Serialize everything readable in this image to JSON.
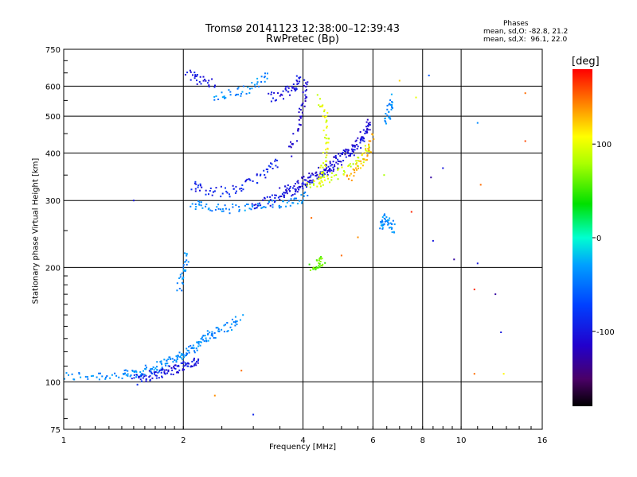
{
  "chart_data": {
    "type": "scatter",
    "title": "Tromsø 20141123 12:38:00–12:39:43",
    "subtitle": "RwPretec (Bp)",
    "xlabel": "Frequency [MHz]",
    "ylabel": "Stationary phase Virtual Height [km]",
    "x_scale": "log",
    "y_scale": "log",
    "xlim": [
      1,
      16
    ],
    "ylim": [
      75,
      750
    ],
    "x_ticks": [
      "1",
      "2",
      "4",
      "6",
      "8",
      "10",
      "16"
    ],
    "y_ticks": [
      "75",
      "100",
      "200",
      "300",
      "400",
      "500",
      "600",
      "750"
    ],
    "grid": true,
    "colorbar": {
      "label": "[deg]",
      "range": [
        -180,
        180
      ],
      "ticks": [
        "100",
        "0",
        "-100"
      ]
    },
    "phases_box": {
      "title": "Phases",
      "line_o": "mean, sd,O: -82.8, 21.2",
      "line_x": "mean, sd,X:  96.1, 22.0"
    },
    "traces": [
      {
        "f": [
          1.0,
          1.2,
          1.4,
          1.5,
          1.6,
          1.7,
          1.8,
          1.9,
          2.0,
          2.1,
          2.2,
          2.3,
          2.4,
          2.6,
          2.8
        ],
        "h": [
          103,
          104,
          104,
          105,
          107,
          109,
          112,
          115,
          118,
          122,
          127,
          131,
          135,
          140,
          147
        ],
        "phase": -40
      },
      {
        "f": [
          1.5,
          1.6,
          1.7,
          1.8,
          1.9,
          2.0,
          2.1,
          2.2
        ],
        "h": [
          101,
          103,
          105,
          106,
          108,
          110,
          112,
          113
        ],
        "phase": -100
      },
      {
        "f": [
          1.95,
          2.0,
          2.05
        ],
        "h": [
          175,
          195,
          220
        ],
        "phase": -40
      },
      {
        "f": [
          2.1,
          2.3,
          2.6,
          3.0,
          3.4,
          3.8,
          4.1
        ],
        "h": [
          295,
          287,
          285,
          287,
          292,
          300,
          310
        ],
        "phase": -40
      },
      {
        "f": [
          2.1,
          2.3,
          2.6,
          2.9,
          3.2,
          3.5
        ],
        "h": [
          330,
          320,
          315,
          330,
          355,
          380
        ],
        "phase": -90
      },
      {
        "f": [
          2.05,
          2.2,
          2.4
        ],
        "h": [
          645,
          625,
          605
        ],
        "phase": -100
      },
      {
        "f": [
          2.4,
          2.7,
          3.0,
          3.3
        ],
        "h": [
          565,
          575,
          600,
          645
        ],
        "phase": -40
      },
      {
        "f": [
          3.3,
          3.6,
          3.8,
          4.0
        ],
        "h": [
          560,
          575,
          600,
          635
        ],
        "phase": -100
      },
      {
        "f": [
          3.0,
          3.3,
          3.6,
          3.9,
          4.2,
          4.5,
          4.8,
          5.2,
          5.6,
          5.9
        ],
        "h": [
          290,
          300,
          312,
          325,
          340,
          355,
          372,
          395,
          425,
          470
        ],
        "phase": -100
      },
      {
        "f": [
          3.5,
          3.8,
          4.1,
          4.4,
          4.7,
          5.0,
          5.3,
          5.7,
          5.9
        ],
        "h": [
          315,
          325,
          340,
          355,
          370,
          390,
          415,
          450,
          480
        ],
        "phase": -110
      },
      {
        "f": [
          3.7,
          3.9,
          4.0,
          4.1
        ],
        "h": [
          400,
          470,
          540,
          620
        ],
        "phase": -110
      },
      {
        "f": [
          4.1,
          4.5,
          5.0,
          5.5,
          5.9
        ],
        "h": [
          325,
          340,
          355,
          375,
          420
        ],
        "phase": 90
      },
      {
        "f": [
          5.2,
          5.5,
          5.8,
          6.0
        ],
        "h": [
          340,
          370,
          400,
          440
        ],
        "phase": 130
      },
      {
        "f": [
          4.4,
          4.5,
          4.6,
          4.55,
          4.4
        ],
        "h": [
          330,
          370,
          420,
          500,
          560
        ],
        "phase": 100
      },
      {
        "f": [
          4.2,
          4.4,
          4.5
        ],
        "h": [
          200,
          205,
          208
        ],
        "phase": 60
      },
      {
        "f": [
          6.3,
          6.4,
          6.6,
          6.8
        ],
        "h": [
          255,
          270,
          262,
          250
        ],
        "phase": -40
      },
      {
        "f": [
          6.5,
          6.6,
          6.7
        ],
        "h": [
          480,
          520,
          560
        ],
        "phase": -40
      }
    ],
    "points": [
      {
        "f": 1.5,
        "h": 300,
        "phase": -100
      },
      {
        "f": 2.4,
        "h": 92,
        "phase": 140
      },
      {
        "f": 2.8,
        "h": 107,
        "phase": 150
      },
      {
        "f": 3.0,
        "h": 82,
        "phase": -90
      },
      {
        "f": 4.2,
        "h": 270,
        "phase": 150
      },
      {
        "f": 5.0,
        "h": 215,
        "phase": 150
      },
      {
        "f": 5.5,
        "h": 240,
        "phase": 140
      },
      {
        "f": 6.4,
        "h": 350,
        "phase": 80
      },
      {
        "f": 7.0,
        "h": 620,
        "phase": 120
      },
      {
        "f": 7.5,
        "h": 280,
        "phase": 170
      },
      {
        "f": 7.7,
        "h": 560,
        "phase": 100
      },
      {
        "f": 8.3,
        "h": 640,
        "phase": -60
      },
      {
        "f": 8.4,
        "h": 345,
        "phase": -130
      },
      {
        "f": 8.5,
        "h": 235,
        "phase": -100
      },
      {
        "f": 9.0,
        "h": 365,
        "phase": -100
      },
      {
        "f": 9.6,
        "h": 210,
        "phase": -130
      },
      {
        "f": 10.8,
        "h": 175,
        "phase": 170
      },
      {
        "f": 10.8,
        "h": 105,
        "phase": 150
      },
      {
        "f": 11.0,
        "h": 480,
        "phase": -40
      },
      {
        "f": 11.0,
        "h": 205,
        "phase": -100
      },
      {
        "f": 11.2,
        "h": 330,
        "phase": 150
      },
      {
        "f": 12.2,
        "h": 170,
        "phase": -130
      },
      {
        "f": 12.6,
        "h": 135,
        "phase": -100
      },
      {
        "f": 12.8,
        "h": 105,
        "phase": 110
      },
      {
        "f": 14.5,
        "h": 430,
        "phase": 160
      },
      {
        "f": 14.5,
        "h": 575,
        "phase": 150
      }
    ]
  }
}
